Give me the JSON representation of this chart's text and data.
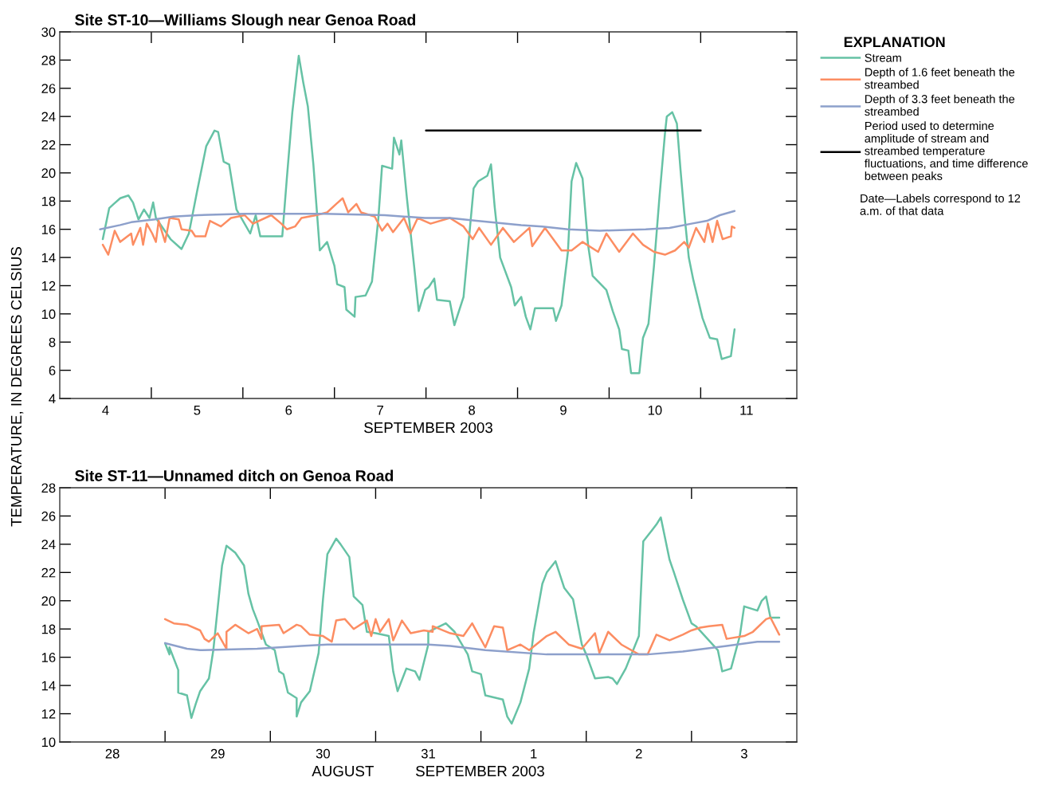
{
  "chart_data": [
    {
      "type": "line",
      "title": "Site ST-10—Williams Slough near Genoa Road",
      "xlabel": "SEPTEMBER 2003",
      "ylabel": "TEMPERATURE, IN DEGREES CELSIUS",
      "legend_title": "EXPLANATION",
      "legend": "right",
      "annotations": [
        "Date—Labels correspond to 12 a.m. of that data"
      ],
      "xlim": [
        3.5,
        11.55
      ],
      "ylim": [
        4,
        30
      ],
      "xticks": [
        4,
        {
          "value": 4.5,
          "label": null
        },
        5,
        {
          "value": 5.5,
          "label": null
        },
        6,
        {
          "value": 6.5,
          "label": null
        },
        7,
        {
          "value": 7.5,
          "label": null
        },
        8,
        {
          "value": 8.5,
          "label": null
        },
        9,
        {
          "value": 9.5,
          "label": null
        },
        10,
        {
          "value": 10.5,
          "label": null
        },
        11
      ],
      "yticks": [
        4,
        6,
        8,
        10,
        12,
        14,
        16,
        18,
        20,
        22,
        24,
        26,
        28,
        30
      ],
      "series": [
        {
          "name": "Stream",
          "color": "#66c2a5",
          "x": [
            3.97,
            4.04,
            4.09,
            4.16,
            4.25,
            4.3,
            4.36,
            4.42,
            4.48,
            4.52,
            4.55,
            4.71,
            4.83,
            4.91,
            5.0,
            5.1,
            5.19,
            5.23,
            5.29,
            5.35,
            5.43,
            5.58,
            5.64,
            5.69,
            5.93,
            5.98,
            6.04,
            6.11,
            6.16,
            6.21,
            6.27,
            6.34,
            6.42,
            6.5,
            6.53,
            6.61,
            6.63,
            6.72,
            6.73,
            6.84,
            6.91,
            6.98,
            7.02,
            7.13,
            7.15,
            7.21,
            7.23,
            7.29,
            7.37,
            7.42,
            7.49,
            7.53,
            7.59,
            7.62,
            7.76,
            7.81,
            7.91,
            8.02,
            8.07,
            8.17,
            8.21,
            8.25,
            8.31,
            8.43,
            8.47,
            8.54,
            8.59,
            8.64,
            8.69,
            8.89,
            8.92,
            8.98,
            9.05,
            9.09,
            9.14,
            9.21,
            9.27,
            9.32,
            9.47,
            9.54,
            9.61,
            9.64,
            9.71,
            9.74,
            9.83,
            9.87,
            9.93,
            9.99,
            10.05,
            10.11,
            10.13,
            10.19,
            10.24,
            10.28,
            10.32,
            10.37,
            10.42,
            10.52,
            10.6,
            10.68,
            10.73,
            10.83,
            10.87
          ],
          "values": [
            15.3,
            17.5,
            17.8,
            18.2,
            18.4,
            17.9,
            16.7,
            17.4,
            16.8,
            17.9,
            16.8,
            15.3,
            14.6,
            15.7,
            18.7,
            21.9,
            23.0,
            22.9,
            20.8,
            20.6,
            17.4,
            15.7,
            17.0,
            15.5,
            15.5,
            19.6,
            24.3,
            28.3,
            26.4,
            24.7,
            20.6,
            14.5,
            15.1,
            13.4,
            12.1,
            11.9,
            10.3,
            9.8,
            11.2,
            11.3,
            12.3,
            16.8,
            20.5,
            20.3,
            22.5,
            21.3,
            22.3,
            18.3,
            13.4,
            10.2,
            11.7,
            11.9,
            12.5,
            11.0,
            10.9,
            9.2,
            11.2,
            18.9,
            19.4,
            19.8,
            20.6,
            17.6,
            14.0,
            11.9,
            10.6,
            11.2,
            9.8,
            8.9,
            10.4,
            10.4,
            9.5,
            10.6,
            14.4,
            19.4,
            20.7,
            19.6,
            14.9,
            12.7,
            11.7,
            10.2,
            8.9,
            7.5,
            7.4,
            5.8,
            5.8,
            8.3,
            9.3,
            13.4,
            18.3,
            22.8,
            24.0,
            24.3,
            23.5,
            20.2,
            17.2,
            14.0,
            12.4,
            9.7,
            8.3,
            8.2,
            6.8,
            7.0,
            8.9
          ]
        },
        {
          "name": "Depth of 1.6 feet beneath the streambed",
          "color": "#fc8d62",
          "x": [
            3.97,
            4.03,
            4.1,
            4.16,
            4.28,
            4.3,
            4.38,
            4.41,
            4.45,
            4.51,
            4.55,
            4.58,
            4.65,
            4.7,
            4.8,
            4.83,
            4.94,
            4.98,
            5.09,
            5.14,
            5.26,
            5.37,
            5.52,
            5.61,
            5.81,
            5.92,
            5.98,
            6.07,
            6.14,
            6.3,
            6.42,
            6.52,
            6.59,
            6.65,
            6.74,
            6.79,
            6.94,
            7.02,
            7.08,
            7.14,
            7.26,
            7.33,
            7.41,
            7.55,
            7.76,
            7.91,
            8.01,
            8.08,
            8.21,
            8.34,
            8.46,
            8.63,
            8.66,
            8.8,
            8.98,
            9.09,
            9.21,
            9.38,
            9.47,
            9.61,
            9.76,
            9.87,
            9.99,
            10.11,
            10.22,
            10.32,
            10.37,
            10.45,
            10.54,
            10.58,
            10.63,
            10.68,
            10.74,
            10.83,
            10.84,
            10.87
          ],
          "values": [
            14.9,
            14.2,
            15.9,
            15.1,
            15.7,
            14.9,
            16.1,
            14.9,
            16.4,
            15.7,
            15.1,
            16.6,
            15.1,
            16.8,
            16.7,
            16.0,
            15.9,
            15.5,
            15.5,
            16.6,
            16.2,
            16.8,
            17.0,
            16.4,
            17.0,
            16.4,
            16.0,
            16.2,
            16.8,
            17.0,
            17.2,
            17.8,
            18.2,
            17.2,
            17.8,
            17.2,
            16.9,
            15.9,
            16.4,
            15.8,
            16.8,
            15.7,
            16.8,
            16.4,
            16.8,
            16.2,
            15.3,
            16.1,
            14.9,
            16.1,
            15.1,
            16.1,
            14.8,
            16.1,
            14.5,
            14.5,
            15.1,
            14.4,
            15.7,
            14.4,
            15.7,
            14.9,
            14.4,
            14.2,
            14.5,
            15.1,
            14.7,
            16.1,
            15.1,
            16.4,
            15.1,
            16.6,
            15.3,
            15.5,
            16.2,
            16.1
          ]
        },
        {
          "name": "Depth of 3.3 feet beneath the streambed",
          "color": "#8da0cb",
          "x": [
            3.94,
            4.16,
            4.28,
            4.54,
            4.74,
            5.01,
            5.52,
            6.39,
            7.05,
            7.49,
            7.76,
            8.05,
            8.54,
            8.77,
            9.05,
            9.4,
            9.9,
            10.16,
            10.4,
            10.57,
            10.71,
            10.87
          ],
          "values": [
            16.0,
            16.3,
            16.5,
            16.7,
            16.9,
            17.0,
            17.1,
            17.1,
            17.0,
            16.8,
            16.8,
            16.6,
            16.3,
            16.2,
            16.0,
            15.9,
            16.0,
            16.1,
            16.4,
            16.6,
            17.0,
            17.3
          ]
        },
        {
          "name": "Period used to determine amplitude of stream and streambed temperature fluctuations, and time difference between peaks",
          "color": "#000000",
          "x": [
            7.5,
            10.5
          ],
          "values": [
            23.0,
            23.0
          ]
        }
      ]
    },
    {
      "type": "line",
      "title": "Site ST-11—Unnamed ditch on Genoa Road",
      "xlabel": "AUGUST          SEPTEMBER 2003",
      "xlim": [
        "2003-08-27T12:00",
        "2003-09-03T12:00"
      ],
      "ylim": [
        10,
        28
      ],
      "xticks": [
        {
          "value": "2003-08-28",
          "label": "28"
        },
        {
          "value": "2003-08-28T12:00",
          "label": null
        },
        {
          "value": "2003-08-29",
          "label": "29"
        },
        {
          "value": "2003-08-29T12:00",
          "label": null
        },
        {
          "value": "2003-08-30",
          "label": "30"
        },
        {
          "value": "2003-08-30T12:00",
          "label": null
        },
        {
          "value": "2003-08-31",
          "label": "31"
        },
        {
          "value": "2003-08-31T12:00",
          "label": null
        },
        {
          "value": "2003-09-01",
          "label": "1"
        },
        {
          "value": "2003-09-01T12:00",
          "label": null
        },
        {
          "value": "2003-09-02",
          "label": "2"
        },
        {
          "value": "2003-09-02T12:00",
          "label": null
        },
        {
          "value": "2003-09-03",
          "label": "3"
        }
      ],
      "yticks": [
        10,
        12,
        14,
        16,
        18,
        20,
        22,
        24,
        26,
        28
      ],
      "series": [
        {
          "color": "#66c2a5",
          "x": [
            "2003-08-28T12:00",
            "2003-08-28T13:00",
            "2003-08-28T13:00",
            "2003-08-28T15:00",
            "2003-08-28T15:00",
            "2003-08-28T17:00",
            "2003-08-28T18:00",
            "2003-08-28T19:00",
            "2003-08-28T20:00",
            "2003-08-28T22:00",
            "2003-08-28T23:00",
            "2003-08-29T00:00",
            "2003-08-29T01:00",
            "2003-08-29T02:00",
            "2003-08-29T04:00",
            "2003-08-29T06:00",
            "2003-08-29T07:00",
            "2003-08-29T08:00",
            "2003-08-29T09:00",
            "2003-08-29T11:00",
            "2003-08-29T13:00",
            "2003-08-29T14:00",
            "2003-08-29T15:00",
            "2003-08-29T16:00",
            "2003-08-29T18:00",
            "2003-08-29T18:00",
            "2003-08-29T19:00",
            "2003-08-29T21:00",
            "2003-08-29T23:00",
            "2003-08-30T00:00",
            "2003-08-30T01:00",
            "2003-08-30T03:00",
            "2003-08-30T04:00",
            "2003-08-30T06:00",
            "2003-08-30T07:00",
            "2003-08-30T09:00",
            "2003-08-30T10:00",
            "2003-08-30T12:00",
            "2003-08-30T15:00",
            "2003-08-30T16:00",
            "2003-08-30T17:00",
            "2003-08-30T19:00",
            "2003-08-30T21:00",
            "2003-08-30T22:00",
            "2003-08-31T00:00",
            "2003-08-31T00:00",
            "2003-08-31T04:00",
            "2003-08-31T06:00",
            "2003-08-31T09:00",
            "2003-08-31T10:00",
            "2003-08-31T12:00",
            "2003-08-31T13:00",
            "2003-08-31T17:00",
            "2003-08-31T18:00",
            "2003-08-31T19:00",
            "2003-08-31T21:00",
            "2003-08-31T23:00",
            "2003-09-01T00:00",
            "2003-09-01T02:00",
            "2003-09-01T03:00",
            "2003-09-01T05:00",
            "2003-09-01T07:00",
            "2003-09-01T09:00",
            "2003-09-01T11:00",
            "2003-09-01T12:00",
            "2003-09-01T14:00",
            "2003-09-01T17:00",
            "2003-09-01T18:00",
            "2003-09-01T19:00",
            "2003-09-01T21:00",
            "2003-09-02T00:00",
            "2003-09-02T01:00",
            "2003-09-02T03:00",
            "2003-09-02T04:00",
            "2003-09-02T05:00",
            "2003-09-02T07:00",
            "2003-09-02T08:00",
            "2003-09-02T10:00",
            "2003-09-02T12:00",
            "2003-09-02T13:00",
            "2003-09-02T18:00",
            "2003-09-02T19:00",
            "2003-09-02T21:00",
            "2003-09-02T23:00",
            "2003-09-03T00:00",
            "2003-09-03T03:00",
            "2003-09-03T04:00",
            "2003-09-03T05:00",
            "2003-09-03T06:00",
            "2003-09-03T08:00"
          ],
          "values": [
            17.0,
            16.2,
            16.7,
            15.1,
            13.5,
            13.3,
            11.7,
            12.7,
            13.6,
            14.5,
            16.5,
            19.5,
            22.5,
            23.9,
            23.4,
            22.5,
            20.5,
            19.4,
            18.6,
            16.9,
            16.5,
            15.0,
            14.8,
            13.5,
            13.1,
            11.8,
            12.8,
            13.6,
            16.3,
            20.1,
            23.3,
            24.4,
            24.0,
            23.1,
            20.3,
            19.7,
            17.8,
            17.7,
            17.5,
            15.0,
            13.6,
            15.2,
            15.0,
            14.4,
            16.9,
            17.8,
            18.4,
            17.8,
            16.2,
            15.0,
            14.8,
            13.3,
            13.0,
            11.8,
            11.3,
            12.8,
            15.2,
            17.7,
            21.2,
            22.0,
            22.8,
            20.9,
            20.1,
            16.9,
            16.2,
            14.5,
            14.6,
            14.5,
            14.1,
            15.2,
            17.5,
            24.2,
            25.0,
            25.4,
            25.9,
            22.9,
            22.0,
            20.1,
            18.4,
            18.2,
            16.5,
            15.0,
            15.2,
            17.5,
            19.6,
            19.3,
            20.0,
            20.3,
            18.8,
            18.8
          ]
        },
        {
          "color": "#fc8d62",
          "x": [
            "2003-08-28T12:00",
            "2003-08-28T14:00",
            "2003-08-28T17:00",
            "2003-08-28T20:00",
            "2003-08-28T21:00",
            "2003-08-28T22:00",
            "2003-08-29T00:00",
            "2003-08-29T02:00",
            "2003-08-29T02:00",
            "2003-08-29T04:00",
            "2003-08-29T07:00",
            "2003-08-29T09:00",
            "2003-08-29T10:00",
            "2003-08-29T10:00",
            "2003-08-29T14:00",
            "2003-08-29T15:00",
            "2003-08-29T18:00",
            "2003-08-29T19:00",
            "2003-08-29T21:00",
            "2003-08-30T00:00",
            "2003-08-30T02:00",
            "2003-08-30T03:00",
            "2003-08-30T05:00",
            "2003-08-30T07:00",
            "2003-08-30T10:00",
            "2003-08-30T11:00",
            "2003-08-30T12:00",
            "2003-08-30T13:00",
            "2003-08-30T15:00",
            "2003-08-30T16:00",
            "2003-08-30T18:00",
            "2003-08-30T20:00",
            "2003-08-30T23:00",
            "2003-08-31T01:00",
            "2003-08-31T01:00",
            "2003-08-31T05:00",
            "2003-08-31T08:00",
            "2003-08-31T10:00",
            "2003-08-31T13:00",
            "2003-08-31T15:00",
            "2003-08-31T17:00",
            "2003-08-31T18:00",
            "2003-08-31T21:00",
            "2003-08-31T23:00",
            "2003-09-01T03:00",
            "2003-09-01T05:00",
            "2003-09-01T08:00",
            "2003-09-01T11:00",
            "2003-09-01T14:00",
            "2003-09-01T15:00",
            "2003-09-01T17:00",
            "2003-09-01T20:00",
            "2003-09-02T00:00",
            "2003-09-02T02:00",
            "2003-09-02T04:00",
            "2003-09-02T07:00",
            "2003-09-02T10:00",
            "2003-09-02T12:00",
            "2003-09-02T14:00",
            "2003-09-02T16:00",
            "2003-09-02T19:00",
            "2003-09-02T20:00",
            "2003-09-03T00:00",
            "2003-09-03T02:00",
            "2003-09-03T05:00",
            "2003-09-03T06:00",
            "2003-09-03T08:00"
          ],
          "values": [
            18.7,
            18.4,
            18.3,
            17.9,
            17.3,
            17.1,
            17.7,
            16.6,
            17.8,
            18.3,
            17.7,
            18.0,
            17.3,
            18.2,
            18.3,
            17.7,
            18.3,
            18.2,
            17.6,
            17.5,
            17.1,
            18.6,
            18.7,
            18.0,
            18.6,
            17.5,
            18.7,
            17.8,
            18.7,
            17.2,
            18.6,
            17.7,
            17.9,
            17.8,
            18.2,
            17.7,
            17.5,
            18.4,
            16.7,
            18.2,
            18.1,
            16.5,
            16.9,
            16.5,
            17.5,
            17.8,
            16.9,
            16.6,
            17.7,
            16.3,
            17.8,
            16.9,
            16.2,
            16.2,
            17.6,
            17.2,
            17.6,
            17.9,
            18.1,
            18.2,
            18.3,
            17.3,
            17.5,
            17.8,
            18.7,
            18.8,
            17.6
          ]
        },
        {
          "color": "#8da0cb",
          "x": [
            "2003-08-28T12:00",
            "2003-08-28T17:00",
            "2003-08-28T20:00",
            "2003-08-29T09:00",
            "2003-08-29T14:00",
            "2003-08-29T19:00",
            "2003-08-30T01:00",
            "2003-08-31T00:00",
            "2003-08-31T05:00",
            "2003-08-31T13:00",
            "2003-09-01T03:00",
            "2003-09-01T16:00",
            "2003-09-02T02:00",
            "2003-09-02T10:00",
            "2003-09-02T20:00",
            "2003-09-03T03:00",
            "2003-09-03T08:00"
          ],
          "values": [
            17.0,
            16.6,
            16.5,
            16.6,
            16.7,
            16.8,
            16.9,
            16.9,
            16.8,
            16.5,
            16.2,
            16.2,
            16.2,
            16.4,
            16.8,
            17.1,
            17.1
          ]
        }
      ]
    }
  ]
}
